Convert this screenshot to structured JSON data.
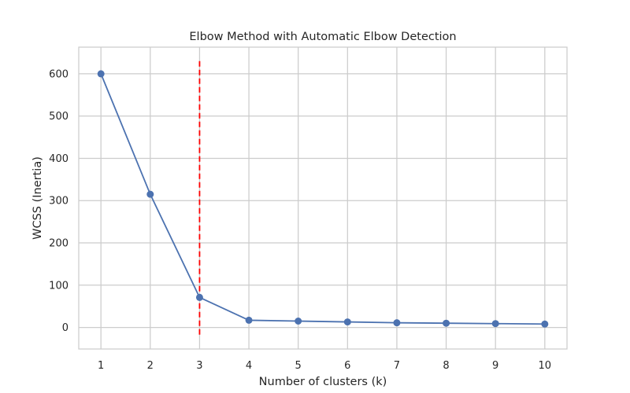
{
  "chart_data": {
    "type": "line",
    "title": "Elbow Method with Automatic Elbow Detection",
    "xlabel": "Number of clusters (k)",
    "ylabel": "WCSS (Inertia)",
    "x": [
      1,
      2,
      3,
      4,
      5,
      6,
      7,
      8,
      9,
      10
    ],
    "x_ticks": [
      1,
      2,
      3,
      4,
      5,
      6,
      7,
      8,
      9,
      10
    ],
    "xlim": [
      0.55,
      10.45
    ],
    "y_ticks": [
      0,
      100,
      200,
      300,
      400,
      500,
      600
    ],
    "ylim": [
      -51,
      663
    ],
    "grid": true,
    "series": [
      {
        "values": [
          600,
          315,
          71,
          17,
          15,
          13,
          11,
          10,
          9,
          8
        ],
        "color": "#4c72b0",
        "marker": "circle"
      }
    ],
    "vlines": [
      {
        "x": 3,
        "y_range": [
          -20,
          630
        ],
        "color": "#ff0000",
        "style": "dashed"
      }
    ]
  }
}
